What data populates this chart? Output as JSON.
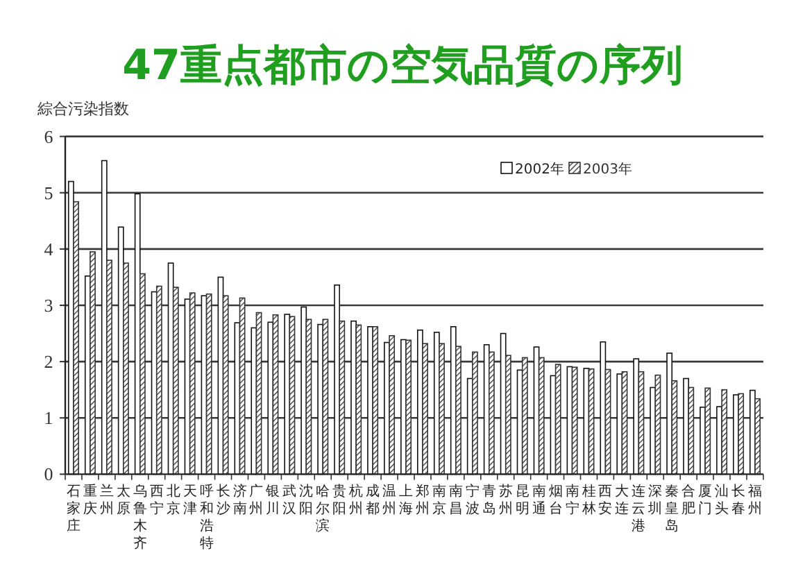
{
  "chart_data": {
    "type": "bar",
    "title": "47重点都市の空気品質の序列",
    "ylabel": "綜合污染指数",
    "categories": [
      "石家庄",
      "重庆",
      "兰州",
      "太原",
      "乌鲁木齐",
      "西宁",
      "北京",
      "天津",
      "呼和浩特",
      "长沙",
      "济南",
      "广州",
      "银川",
      "武汉",
      "沈阳",
      "哈尔滨",
      "贵阳",
      "杭州",
      "成都",
      "温州",
      "上海",
      "郑州",
      "南京",
      "南昌",
      "宁波",
      "青岛",
      "苏州",
      "昆明",
      "南通",
      "烟台",
      "南宁",
      "桂林",
      "西安",
      "大连",
      "连云港",
      "深圳",
      "秦皇岛",
      "合肥",
      "厦门",
      "汕头",
      "长春",
      "福州"
    ],
    "series": [
      {
        "name": "2002年",
        "color": "#ffffff",
        "values": [
          5.2,
          3.52,
          5.57,
          4.39,
          4.98,
          3.24,
          3.75,
          3.11,
          3.17,
          3.5,
          2.69,
          2.6,
          2.7,
          2.84,
          2.97,
          2.66,
          3.36,
          2.72,
          2.62,
          2.34,
          2.39,
          2.56,
          2.52,
          2.62,
          1.7,
          2.3,
          2.5,
          1.85,
          2.26,
          1.75,
          1.91,
          1.88,
          2.35,
          1.78,
          2.05,
          1.54,
          2.15,
          1.7,
          1.19,
          1.2,
          1.41,
          1.49
        ]
      },
      {
        "name": "2003年",
        "color": "#333333",
        "values": [
          4.84,
          3.95,
          3.8,
          3.75,
          3.56,
          3.34,
          3.32,
          3.22,
          3.2,
          3.17,
          3.13,
          2.87,
          2.83,
          2.8,
          2.75,
          2.75,
          2.72,
          2.65,
          2.62,
          2.46,
          2.38,
          2.32,
          2.32,
          2.27,
          2.17,
          2.17,
          2.11,
          2.07,
          2.07,
          1.95,
          1.9,
          1.87,
          1.86,
          1.82,
          1.82,
          1.76,
          1.66,
          1.54,
          1.53,
          1.5,
          1.43,
          1.34
        ]
      }
    ],
    "ylim": [
      0,
      6
    ],
    "yticks": [
      0,
      1,
      2,
      3,
      4,
      5,
      6
    ],
    "grid": "y",
    "legend": "top right"
  }
}
